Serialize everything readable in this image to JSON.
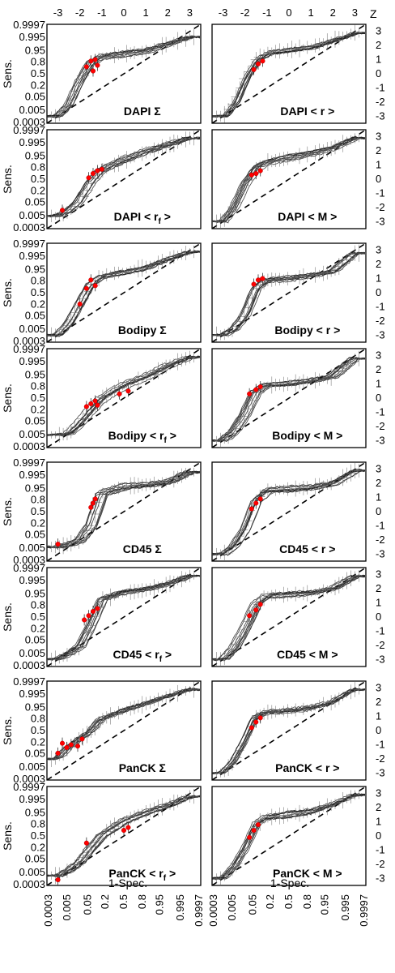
{
  "figure": {
    "z_axis_label": "Z",
    "y_axis_label": "Sens.",
    "x_axis_label": "1-Spec.",
    "prob_tick_labels": [
      "0.0003",
      "0.005",
      "0.05",
      "0.2",
      "0.5",
      "0.8",
      "0.95",
      "0.995",
      "0.9997"
    ],
    "z_tick_labels": [
      "-3",
      "-2",
      "-1",
      "0",
      "1",
      "2",
      "3"
    ]
  },
  "chart_data": [
    {
      "type": "line",
      "title": "DAPI Σ",
      "panel_row": 0,
      "panel_col": 0,
      "n_curves": 10,
      "series": [
        {
          "name": "",
          "x": [
            -3,
            -2.5,
            -2,
            -1.5,
            -1,
            0,
            1,
            2,
            3
          ],
          "y": [
            -3,
            -2.2,
            -0.5,
            0.8,
            1.2,
            1.4,
            1.6,
            2.1,
            2.6
          ]
        }
      ],
      "markers": {
        "x": [
          -1.7,
          -1.5,
          -1.3,
          -1.2,
          -1.4
        ],
        "y": [
          0.5,
          0.9,
          1.0,
          0.6,
          0.2
        ]
      },
      "diagonal": "y=x",
      "xlim": [
        -3.5,
        3.5
      ],
      "ylim": [
        -3.5,
        3.5
      ]
    },
    {
      "type": "line",
      "title": "DAPI < r >",
      "panel_row": 0,
      "panel_col": 1,
      "n_curves": 10,
      "series": [
        {
          "name": "",
          "x": [
            -3,
            -2.5,
            -2,
            -1.5,
            -1,
            0,
            1,
            2,
            3
          ],
          "y": [
            -3,
            -2.0,
            -0.2,
            1.0,
            1.5,
            1.7,
            1.9,
            2.4,
            2.9
          ]
        }
      ],
      "markers": {
        "x": [
          -1.6,
          -1.4,
          -1.2
        ],
        "y": [
          0.3,
          0.7,
          0.9
        ]
      },
      "diagonal": "y=x",
      "xlim": [
        -3.5,
        3.5
      ],
      "ylim": [
        -3.5,
        3.5
      ]
    },
    {
      "type": "line",
      "title": "DAPI < r_f >",
      "panel_row": 1,
      "panel_col": 0,
      "n_curves": 10,
      "series": [
        {
          "name": "",
          "x": [
            -3,
            -2.5,
            -2,
            -1.5,
            -1,
            0,
            1,
            2,
            3
          ],
          "y": [
            -2.6,
            -2.3,
            -1.6,
            -0.3,
            0.6,
            1.3,
            1.9,
            2.4,
            2.9
          ]
        }
      ],
      "markers": {
        "x": [
          -2.8,
          -1.6,
          -1.4,
          -1.2,
          -1.0
        ],
        "y": [
          -2.2,
          0.1,
          0.4,
          0.6,
          0.7
        ]
      },
      "diagonal": "y=x",
      "xlim": [
        -3.5,
        3.5
      ],
      "ylim": [
        -3.5,
        3.5
      ]
    },
    {
      "type": "line",
      "title": "DAPI < M >",
      "panel_row": 1,
      "panel_col": 1,
      "n_curves": 10,
      "series": [
        {
          "name": "",
          "x": [
            -3,
            -2.5,
            -2,
            -1.5,
            -1,
            0,
            1,
            2,
            3
          ],
          "y": [
            -3,
            -2.0,
            -0.3,
            0.8,
            1.2,
            1.5,
            1.8,
            2.2,
            2.9
          ]
        }
      ],
      "markers": {
        "x": [
          -1.7,
          -1.5,
          -1.3
        ],
        "y": [
          0.3,
          0.4,
          0.6
        ]
      },
      "diagonal": "y=x",
      "xlim": [
        -3.5,
        3.5
      ],
      "ylim": [
        -3.5,
        3.5
      ]
    },
    {
      "type": "line",
      "title": "Bodipy Σ",
      "panel_row": 2,
      "panel_col": 0,
      "n_curves": 10,
      "series": [
        {
          "name": "",
          "x": [
            -3,
            -2.5,
            -2,
            -1.5,
            -1,
            0,
            1,
            2,
            3
          ],
          "y": [
            -3,
            -2.2,
            -0.8,
            0.6,
            1.2,
            1.5,
            1.8,
            2.4,
            2.9
          ]
        }
      ],
      "markers": {
        "x": [
          -2.0,
          -1.7,
          -1.5,
          -1.3
        ],
        "y": [
          -0.8,
          0.3,
          0.9,
          0.5
        ]
      },
      "diagonal": "y=x",
      "xlim": [
        -3.5,
        3.5
      ],
      "ylim": [
        -3.5,
        3.5
      ]
    },
    {
      "type": "line",
      "title": "Bodipy < r >",
      "panel_row": 2,
      "panel_col": 1,
      "n_curves": 10,
      "series": [
        {
          "name": "",
          "x": [
            -3,
            -2.5,
            -2,
            -1.5,
            -1,
            0,
            1,
            2,
            3
          ],
          "y": [
            -3,
            -2.6,
            -1.6,
            0.3,
            0.9,
            1.0,
            1.2,
            1.5,
            2.8
          ]
        }
      ],
      "markers": {
        "x": [
          -1.6,
          -1.4,
          -1.2
        ],
        "y": [
          0.6,
          0.9,
          1.0
        ]
      },
      "diagonal": "y=x",
      "xlim": [
        -3.5,
        3.5
      ],
      "ylim": [
        -3.5,
        3.5
      ]
    },
    {
      "type": "line",
      "title": "Bodipy < r_f >",
      "panel_row": 3,
      "panel_col": 0,
      "n_curves": 10,
      "series": [
        {
          "name": "",
          "x": [
            -3,
            -2.5,
            -2,
            -1.5,
            -1,
            0,
            1,
            2,
            3
          ],
          "y": [
            -2.6,
            -2.5,
            -1.7,
            -0.8,
            0.0,
            0.9,
            1.5,
            2.3,
            2.9
          ]
        }
      ],
      "markers": {
        "x": [
          -1.7,
          -1.5,
          -1.3,
          -1.2,
          -0.2,
          0.2
        ],
        "y": [
          -0.6,
          -0.4,
          -0.2,
          -0.5,
          0.3,
          0.5
        ]
      },
      "diagonal": "y=x",
      "xlim": [
        -3.5,
        3.5
      ],
      "ylim": [
        -3.5,
        3.5
      ]
    },
    {
      "type": "line",
      "title": "Bodipy < M >",
      "panel_row": 3,
      "panel_col": 1,
      "n_curves": 10,
      "series": [
        {
          "name": "",
          "x": [
            -3,
            -2.5,
            -2,
            -1.5,
            -1,
            0,
            1,
            2,
            3
          ],
          "y": [
            -3,
            -2.4,
            -1.2,
            0.4,
            0.9,
            1.0,
            1.2,
            1.5,
            2.8
          ]
        }
      ],
      "markers": {
        "x": [
          -1.8,
          -1.5,
          -1.3
        ],
        "y": [
          0.3,
          0.6,
          0.8
        ]
      },
      "diagonal": "y=x",
      "xlim": [
        -3.5,
        3.5
      ],
      "ylim": [
        -3.5,
        3.5
      ]
    },
    {
      "type": "line",
      "title": "CD45 Σ",
      "panel_row": 4,
      "panel_col": 0,
      "n_curves": 10,
      "series": [
        {
          "name": "",
          "x": [
            -3,
            -2.5,
            -2,
            -1.5,
            -1,
            0,
            1,
            2,
            3
          ],
          "y": [
            -2.5,
            -2.3,
            -2.0,
            -1.0,
            1.3,
            1.8,
            1.9,
            2.1,
            2.8
          ]
        }
      ],
      "markers": {
        "x": [
          -3.0,
          -1.5,
          -1.4,
          -1.3
        ],
        "y": [
          -2.3,
          0.3,
          0.6,
          0.9
        ]
      },
      "diagonal": "y=x",
      "xlim": [
        -3.5,
        3.5
      ],
      "ylim": [
        -3.5,
        3.5
      ]
    },
    {
      "type": "line",
      "title": "CD45 < r >",
      "panel_row": 4,
      "panel_col": 1,
      "n_curves": 10,
      "series": [
        {
          "name": "",
          "x": [
            -3,
            -2.5,
            -2,
            -1.5,
            -1,
            0,
            1,
            2,
            3
          ],
          "y": [
            -3,
            -2.4,
            -1.2,
            0.8,
            1.5,
            1.6,
            1.7,
            2.0,
            2.9
          ]
        }
      ],
      "markers": {
        "x": [
          -1.7,
          -1.5,
          -1.3
        ],
        "y": [
          0.2,
          0.6,
          0.9
        ]
      },
      "diagonal": "y=x",
      "xlim": [
        -3.5,
        3.5
      ],
      "ylim": [
        -3.5,
        3.5
      ]
    },
    {
      "type": "line",
      "title": "CD45 < r_f >",
      "panel_row": 5,
      "panel_col": 0,
      "n_curves": 10,
      "series": [
        {
          "name": "",
          "x": [
            -3,
            -2.5,
            -2,
            -1.5,
            -1,
            0,
            1,
            2,
            3
          ],
          "y": [
            -3,
            -2.6,
            -2.1,
            -0.6,
            1.2,
            1.7,
            1.9,
            2.3,
            2.9
          ]
        }
      ],
      "markers": {
        "x": [
          -1.8,
          -1.6,
          -1.4,
          -1.2
        ],
        "y": [
          -0.2,
          0.1,
          0.4,
          0.6
        ]
      },
      "diagonal": "y=x",
      "xlim": [
        -3.5,
        3.5
      ],
      "ylim": [
        -3.5,
        3.5
      ]
    },
    {
      "type": "line",
      "title": "CD45 < M >",
      "panel_row": 5,
      "panel_col": 1,
      "n_curves": 10,
      "series": [
        {
          "name": "",
          "x": [
            -3,
            -2.5,
            -2,
            -1.5,
            -1,
            0,
            1,
            2,
            3
          ],
          "y": [
            -3,
            -2.2,
            -0.8,
            0.9,
            1.5,
            1.6,
            1.7,
            2.0,
            2.9
          ]
        }
      ],
      "markers": {
        "x": [
          -1.8,
          -1.5,
          -1.3
        ],
        "y": [
          0.1,
          0.5,
          0.9
        ]
      },
      "diagonal": "y=x",
      "xlim": [
        -3.5,
        3.5
      ],
      "ylim": [
        -3.5,
        3.5
      ]
    },
    {
      "type": "line",
      "title": "PanCK Σ",
      "panel_row": 6,
      "panel_col": 0,
      "n_curves": 10,
      "series": [
        {
          "name": "",
          "x": [
            -3,
            -2.5,
            -2,
            -1.5,
            -1,
            0,
            1,
            2,
            3
          ],
          "y": [
            -2.0,
            -1.2,
            -0.6,
            -0.1,
            0.8,
            1.4,
            1.9,
            2.4,
            2.9
          ]
        }
      ],
      "markers": {
        "x": [
          -3.0,
          -2.8,
          -2.6,
          -2.4,
          -2.1,
          -1.9
        ],
        "y": [
          -1.6,
          -0.9,
          -1.2,
          -1.0,
          -1.1,
          -0.6
        ]
      },
      "diagonal": "y=x",
      "xlim": [
        -3.5,
        3.5
      ],
      "ylim": [
        -3.5,
        3.5
      ]
    },
    {
      "type": "line",
      "title": "PanCK < r >",
      "panel_row": 6,
      "panel_col": 1,
      "n_curves": 10,
      "series": [
        {
          "name": "",
          "x": [
            -3,
            -2.5,
            -2,
            -1.5,
            -1,
            0,
            1,
            2,
            3
          ],
          "y": [
            -3,
            -2.2,
            -0.8,
            0.9,
            1.3,
            1.4,
            1.6,
            2.0,
            2.9
          ]
        }
      ],
      "markers": {
        "x": [
          -1.7,
          -1.5,
          -1.3
        ],
        "y": [
          0.2,
          0.6,
          0.9
        ]
      },
      "diagonal": "y=x",
      "xlim": [
        -3.5,
        3.5
      ],
      "ylim": [
        -3.5,
        3.5
      ]
    },
    {
      "type": "line",
      "title": "PanCK < r_f >",
      "panel_row": 7,
      "panel_col": 0,
      "n_curves": 10,
      "series": [
        {
          "name": "",
          "x": [
            -3,
            -2.5,
            -2,
            -1.5,
            -1,
            0,
            1,
            2,
            3
          ],
          "y": [
            -2.8,
            -2.4,
            -1.8,
            -0.8,
            0.1,
            1.1,
            1.7,
            2.2,
            2.8
          ]
        }
      ],
      "markers": {
        "x": [
          -3.0,
          -1.7,
          0.0,
          0.2
        ],
        "y": [
          -3.1,
          -0.5,
          0.4,
          0.6
        ]
      },
      "diagonal": "y=x",
      "xlim": [
        -3.5,
        3.5
      ],
      "ylim": [
        -3.5,
        3.5
      ]
    },
    {
      "type": "line",
      "title": "PanCK < M >",
      "panel_row": 7,
      "panel_col": 1,
      "n_curves": 10,
      "series": [
        {
          "name": "",
          "x": [
            -3,
            -2.5,
            -2,
            -1.5,
            -1,
            0,
            1,
            2,
            3
          ],
          "y": [
            -3,
            -2.2,
            -0.9,
            0.8,
            1.3,
            1.5,
            1.7,
            2.2,
            2.9
          ]
        }
      ],
      "markers": {
        "x": [
          -1.8,
          -1.6,
          -1.4
        ],
        "y": [
          -0.1,
          0.4,
          0.8
        ]
      },
      "diagonal": "y=x",
      "xlim": [
        -3.5,
        3.5
      ],
      "ylim": [
        -3.5,
        3.5
      ]
    }
  ]
}
